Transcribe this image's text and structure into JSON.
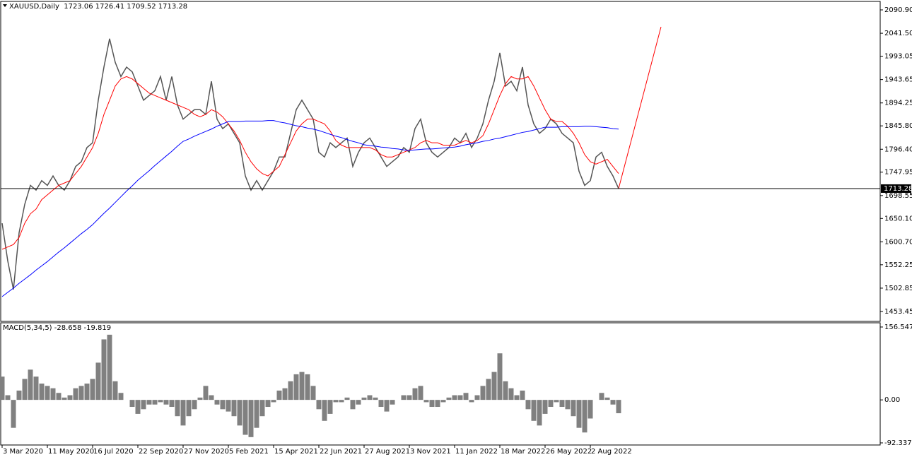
{
  "chart_data": [
    {
      "type": "line",
      "title": "XAUUSD,Daily  1723.06 1726.41 1709.52 1713.28",
      "xlim": [
        -0.25,
        155.25
      ],
      "ylim": [
        1432.6,
        2108.8
      ],
      "yticks": [
        {
          "value": 2090.9,
          "label": "2090.90"
        },
        {
          "value": 2041.5,
          "label": "2041.50"
        },
        {
          "value": 1993.05,
          "label": "1993.05"
        },
        {
          "value": 1943.65,
          "label": "1943.65"
        },
        {
          "value": 1894.25,
          "label": "1894.25"
        },
        {
          "value": 1845.8,
          "label": "1845.80"
        },
        {
          "value": 1796.4,
          "label": "1796.40"
        },
        {
          "value": 1747.95,
          "label": "1747.95"
        },
        {
          "value": 1698.55,
          "label": "1698.55"
        },
        {
          "value": 1650.1,
          "label": "1650.10"
        },
        {
          "value": 1600.7,
          "label": "1600.70"
        },
        {
          "value": 1552.25,
          "label": "1552.25"
        },
        {
          "value": 1502.85,
          "label": "1502.85"
        },
        {
          "value": 1453.45,
          "label": "1453.45"
        }
      ],
      "current_price": 1713.28,
      "series": [
        {
          "color": "#555555",
          "values": [
            1640,
            1560,
            1500,
            1620,
            1680,
            1720,
            1710,
            1730,
            1720,
            1740,
            1720,
            1710,
            1730,
            1760,
            1770,
            1800,
            1810,
            1900,
            1970,
            2030,
            1980,
            1950,
            1970,
            1960,
            1930,
            1900,
            1910,
            1920,
            1950,
            1900,
            1950,
            1890,
            1860,
            1870,
            1880,
            1880,
            1870,
            1940,
            1860,
            1840,
            1850,
            1830,
            1810,
            1740,
            1710,
            1730,
            1710,
            1730,
            1750,
            1780,
            1780,
            1830,
            1880,
            1900,
            1880,
            1860,
            1790,
            1780,
            1810,
            1800,
            1810,
            1820,
            1760,
            1790,
            1810,
            1820,
            1800,
            1780,
            1760,
            1770,
            1780,
            1800,
            1790,
            1840,
            1860,
            1810,
            1790,
            1780,
            1790,
            1800,
            1820,
            1810,
            1830,
            1800,
            1820,
            1850,
            1900,
            1940,
            2000,
            1930,
            1940,
            1920,
            1970,
            1890,
            1850,
            1830,
            1840,
            1860,
            1850,
            1830,
            1820,
            1810,
            1750,
            1720,
            1730,
            1780,
            1790,
            1760,
            1740,
            1713.28
          ]
        },
        {
          "color": "#ff0000",
          "values": [
            1585,
            1590,
            1595,
            1610,
            1640,
            1660,
            1670,
            1690,
            1700,
            1710,
            1720,
            1725,
            1730,
            1745,
            1760,
            1780,
            1800,
            1830,
            1870,
            1900,
            1930,
            1945,
            1950,
            1945,
            1935,
            1925,
            1915,
            1910,
            1905,
            1900,
            1895,
            1890,
            1885,
            1880,
            1870,
            1865,
            1870,
            1880,
            1875,
            1865,
            1850,
            1835,
            1815,
            1790,
            1770,
            1755,
            1745,
            1740,
            1750,
            1760,
            1785,
            1810,
            1835,
            1850,
            1860,
            1860,
            1855,
            1850,
            1835,
            1815,
            1805,
            1800,
            1800,
            1800,
            1800,
            1800,
            1795,
            1785,
            1780,
            1780,
            1785,
            1790,
            1795,
            1800,
            1810,
            1815,
            1810,
            1810,
            1805,
            1805,
            1805,
            1810,
            1815,
            1810,
            1815,
            1825,
            1850,
            1880,
            1910,
            1935,
            1950,
            1945,
            1945,
            1950,
            1930,
            1905,
            1880,
            1860,
            1855,
            1855,
            1845,
            1830,
            1810,
            1785,
            1770,
            1765,
            1770,
            1775,
            1760,
            1745
          ]
        },
        {
          "color": "#0000ff",
          "values": [
            1485,
            1494,
            1503,
            1513,
            1522,
            1531,
            1541,
            1550,
            1559,
            1569,
            1579,
            1588,
            1598,
            1608,
            1618,
            1627,
            1637,
            1649,
            1661,
            1672,
            1684,
            1696,
            1708,
            1719,
            1731,
            1741,
            1751,
            1762,
            1772,
            1782,
            1792,
            1803,
            1813,
            1818,
            1824,
            1829,
            1834,
            1839,
            1845,
            1850,
            1855,
            1855,
            1855,
            1856,
            1856,
            1856,
            1856,
            1857,
            1857,
            1854,
            1852,
            1849,
            1846,
            1844,
            1841,
            1839,
            1836,
            1832,
            1828,
            1824,
            1821,
            1817,
            1813,
            1810,
            1806,
            1804,
            1803,
            1801,
            1800,
            1798,
            1797,
            1795,
            1794,
            1795,
            1796,
            1797,
            1797,
            1798,
            1799,
            1800,
            1801,
            1803,
            1806,
            1808,
            1810,
            1813,
            1815,
            1818,
            1820,
            1823,
            1826,
            1829,
            1832,
            1834,
            1837,
            1840,
            1843,
            1843,
            1843,
            1844,
            1844,
            1844,
            1844,
            1845,
            1845,
            1844,
            1843,
            1842,
            1840,
            1839
          ]
        }
      ],
      "trendline": {
        "color": "#ff0000",
        "x": [
          109,
          116.5
        ],
        "values": [
          1713.28,
          2055
        ]
      }
    },
    {
      "type": "bar",
      "title": "MACD(5,34,5) -28.658 -19.819",
      "color": "#808080",
      "xlim": [
        -0.25,
        155.25
      ],
      "ylim": [
        -96.9,
        165.6
      ],
      "yticks": [
        156.547,
        {
          "value": 0,
          "label": "0.00"
        },
        -92.337
      ],
      "xticks": [
        {
          "value": 0,
          "label": "3 Mar 2020"
        },
        {
          "value": 8,
          "label": "11 May 2020"
        },
        {
          "value": 16,
          "label": "16 Jul 2020"
        },
        {
          "value": 24,
          "label": "22 Sep 2020"
        },
        {
          "value": 32,
          "label": "27 Nov 2020"
        },
        {
          "value": 40,
          "label": "5 Feb 2021"
        },
        {
          "value": 48,
          "label": "15 Apr 2021"
        },
        {
          "value": 56,
          "label": "22 Jun 2021"
        },
        {
          "value": 64,
          "label": "27 Aug 2021"
        },
        {
          "value": 72,
          "label": "3 Nov 2021"
        },
        {
          "value": 80,
          "label": "11 Jan 2022"
        },
        {
          "value": 88,
          "label": "18 Mar 2022"
        },
        {
          "value": 96,
          "label": "26 May 2022"
        },
        {
          "value": 104,
          "label": "2 Aug 2022"
        }
      ],
      "values": [
        50,
        10,
        -60,
        20,
        45,
        65,
        50,
        35,
        30,
        25,
        15,
        5,
        10,
        25,
        30,
        35,
        45,
        80,
        130,
        140,
        40,
        15,
        0,
        -15,
        -30,
        -20,
        -10,
        -10,
        -5,
        -10,
        -15,
        -35,
        -55,
        -35,
        -20,
        5,
        30,
        10,
        -10,
        -20,
        -25,
        -35,
        -55,
        -75,
        -80,
        -60,
        -35,
        -15,
        -5,
        20,
        25,
        40,
        55,
        60,
        55,
        30,
        -20,
        -45,
        -30,
        -5,
        -5,
        5,
        -20,
        -10,
        5,
        10,
        5,
        -15,
        -25,
        -10,
        0,
        10,
        10,
        25,
        30,
        -5,
        -15,
        -15,
        -5,
        5,
        10,
        10,
        15,
        -5,
        10,
        30,
        45,
        60,
        100,
        40,
        25,
        10,
        20,
        -20,
        -45,
        -55,
        -30,
        -15,
        -5,
        -15,
        -20,
        -35,
        -60,
        -70,
        -40,
        0,
        15,
        5,
        -10,
        -28.658
      ]
    }
  ]
}
